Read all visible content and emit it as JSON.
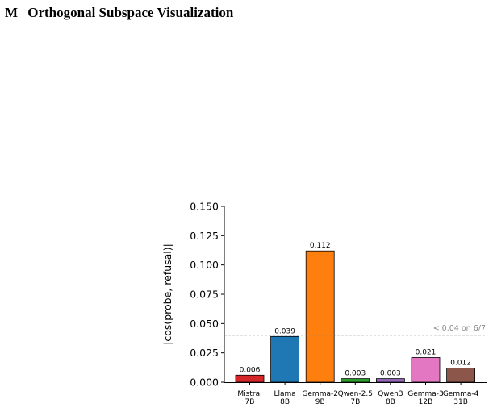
{
  "section": {
    "number": "M",
    "title": "Orthogonal Subspace Visualization"
  },
  "chart_data": {
    "type": "bar",
    "ylabel": "|cos(probe, refusal)|",
    "xlabel": "",
    "ylim": [
      0,
      0.15
    ],
    "yticks": [
      "0.000",
      "0.025",
      "0.050",
      "0.075",
      "0.100",
      "0.125",
      "0.150"
    ],
    "categories": [
      [
        "Mistral",
        "7B"
      ],
      [
        "Llama",
        "8B"
      ],
      [
        "Gemma-2",
        "9B"
      ],
      [
        "Qwen-2.5",
        "7B"
      ],
      [
        "Qwen3",
        "8B"
      ],
      [
        "Gemma-3",
        "12B"
      ],
      [
        "Gemma-4",
        "31B"
      ]
    ],
    "values": [
      0.006,
      0.039,
      0.112,
      0.003,
      0.003,
      0.021,
      0.012
    ],
    "value_labels": [
      "0.006",
      "0.039",
      "0.112",
      "0.003",
      "0.003",
      "0.021",
      "0.012"
    ],
    "colors": [
      "#d62728",
      "#1f77b4",
      "#ff7f0e",
      "#2ca02c",
      "#9467bd",
      "#e377c2",
      "#8c564b"
    ],
    "threshold": {
      "value": 0.04,
      "label": "< 0.04 on 6/7",
      "color": "#888888"
    },
    "grid": false
  }
}
